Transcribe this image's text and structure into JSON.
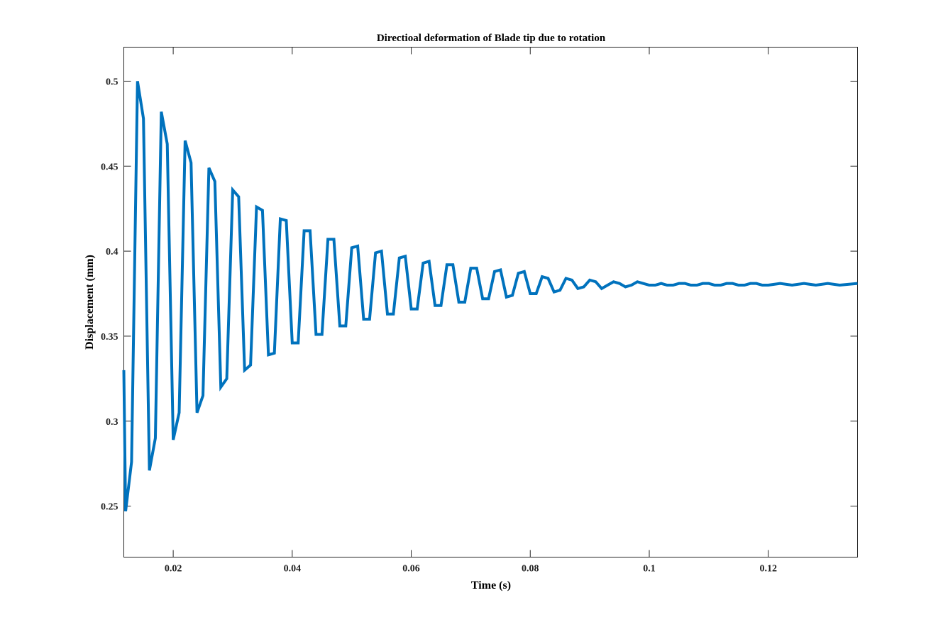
{
  "chart_data": {
    "type": "line",
    "title": "Directioal deformation of Blade tip due to rotation",
    "xlabel": "Time (s)",
    "ylabel": "Displacement (mm)",
    "xlim": [
      0.0117,
      0.135
    ],
    "ylim": [
      0.22,
      0.52
    ],
    "xticks": [
      0.02,
      0.04,
      0.06,
      0.08,
      0.1,
      0.12
    ],
    "xtick_labels": [
      "0.02",
      "0.04",
      "0.06",
      "0.08",
      "0.1",
      "0.12"
    ],
    "yticks": [
      0.25,
      0.3,
      0.35,
      0.4,
      0.45,
      0.5
    ],
    "ytick_labels": [
      "0.25",
      "0.3",
      "0.35",
      "0.4",
      "0.45",
      "0.5"
    ],
    "grid": false,
    "colors": {
      "series": "#0072BD",
      "axes": "#262626"
    },
    "series": [
      {
        "x": [
          0.0117,
          0.012,
          0.013,
          0.014,
          0.015,
          0.016,
          0.017,
          0.018,
          0.019,
          0.02,
          0.021,
          0.022,
          0.023,
          0.024,
          0.025,
          0.026,
          0.027,
          0.028,
          0.029,
          0.03,
          0.031,
          0.032,
          0.033,
          0.034,
          0.035,
          0.036,
          0.037,
          0.038,
          0.039,
          0.04,
          0.041,
          0.042,
          0.043,
          0.044,
          0.045,
          0.046,
          0.047,
          0.048,
          0.049,
          0.05,
          0.051,
          0.052,
          0.053,
          0.054,
          0.055,
          0.056,
          0.057,
          0.058,
          0.059,
          0.06,
          0.061,
          0.062,
          0.063,
          0.064,
          0.065,
          0.066,
          0.067,
          0.068,
          0.069,
          0.07,
          0.071,
          0.072,
          0.073,
          0.074,
          0.075,
          0.076,
          0.077,
          0.078,
          0.079,
          0.08,
          0.081,
          0.082,
          0.083,
          0.084,
          0.085,
          0.086,
          0.087,
          0.088,
          0.089,
          0.09,
          0.091,
          0.092,
          0.093,
          0.094,
          0.095,
          0.096,
          0.097,
          0.098,
          0.099,
          0.1,
          0.101,
          0.102,
          0.103,
          0.104,
          0.105,
          0.106,
          0.107,
          0.108,
          0.109,
          0.11,
          0.111,
          0.112,
          0.113,
          0.114,
          0.115,
          0.116,
          0.117,
          0.118,
          0.119,
          0.12,
          0.122,
          0.124,
          0.126,
          0.128,
          0.13,
          0.132,
          0.135
        ],
        "values": [
          0.33,
          0.247,
          0.276,
          0.5,
          0.478,
          0.271,
          0.29,
          0.482,
          0.463,
          0.289,
          0.305,
          0.465,
          0.452,
          0.305,
          0.315,
          0.449,
          0.441,
          0.32,
          0.325,
          0.436,
          0.432,
          0.33,
          0.333,
          0.426,
          0.424,
          0.339,
          0.34,
          0.419,
          0.418,
          0.346,
          0.346,
          0.412,
          0.412,
          0.351,
          0.351,
          0.407,
          0.407,
          0.356,
          0.356,
          0.402,
          0.403,
          0.36,
          0.36,
          0.399,
          0.4,
          0.363,
          0.363,
          0.396,
          0.397,
          0.366,
          0.366,
          0.393,
          0.394,
          0.368,
          0.368,
          0.392,
          0.392,
          0.37,
          0.37,
          0.39,
          0.39,
          0.372,
          0.372,
          0.388,
          0.389,
          0.373,
          0.374,
          0.387,
          0.388,
          0.375,
          0.375,
          0.385,
          0.384,
          0.376,
          0.377,
          0.384,
          0.383,
          0.378,
          0.379,
          0.383,
          0.382,
          0.378,
          0.38,
          0.382,
          0.381,
          0.379,
          0.38,
          0.382,
          0.381,
          0.38,
          0.38,
          0.381,
          0.38,
          0.38,
          0.381,
          0.381,
          0.38,
          0.38,
          0.381,
          0.381,
          0.38,
          0.38,
          0.381,
          0.381,
          0.38,
          0.38,
          0.381,
          0.381,
          0.38,
          0.38,
          0.381,
          0.38,
          0.381,
          0.38,
          0.381,
          0.38,
          0.381
        ]
      }
    ]
  }
}
